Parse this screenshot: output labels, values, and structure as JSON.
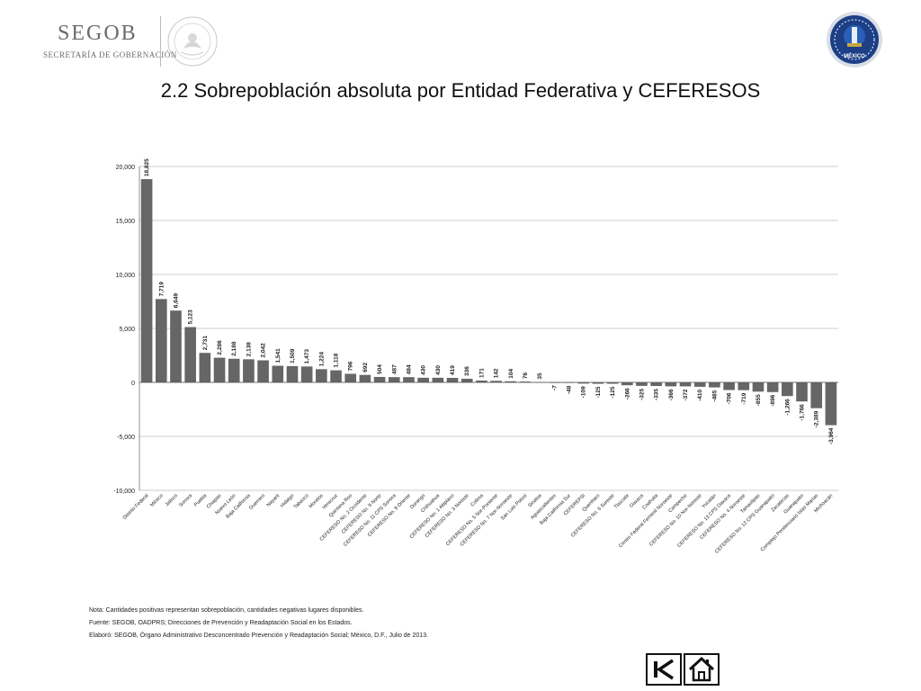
{
  "header": {
    "logo_text": "SEGOB",
    "logo_subtitle": "SECRETARÍA DE GOBERNACIÓN",
    "seal_text": "ESTADOS UNIDOS MEXICANOS",
    "right_logo_text": "MÉXICO"
  },
  "title": "2.2 Sobrepoblación absoluta por Entidad Federativa y CEFERESOS",
  "chart_data": {
    "type": "bar",
    "ylim": [
      -10000,
      20000
    ],
    "yticks": [
      -10000,
      -5000,
      0,
      5000,
      10000,
      15000,
      20000
    ],
    "ytick_labels": [
      "-10,000",
      "-5,000",
      "0",
      "5,000",
      "10,000",
      "15,000",
      "20,000"
    ],
    "grid": true,
    "bar_color": "#666666",
    "categories": [
      "Distrito Federal",
      "México",
      "Jalisco",
      "Sonora",
      "Puebla",
      "Chiapas",
      "Nuevo León",
      "Baja California",
      "Guerrero",
      "Nayarit",
      "Hidalgo",
      "Tabasco",
      "Morelos",
      "Veracruz",
      "Quintana Roo",
      "CEFERESO No. 2 Occidente",
      "CEFERESO No. 9 Norte",
      "CEFERESO No. 11 CPS Sonora",
      "CEFERESO No. 8 Oriente",
      "Durango",
      "Chihuahua",
      "CEFERESO No. 1 Altiplano",
      "CEFERESO No. 3 Noreste",
      "Colima",
      "CEFERESO No. 5 Nor-Poniente",
      "CEFERESO No. 7 Nor-Noroeste",
      "San Luis Potosí",
      "Sinaloa",
      "Aguascalientes",
      "Baja California Sur",
      "CEFEREPSI",
      "Querétaro",
      "CEFERESO No. 6 Sureste",
      "Tlaxcala",
      "Oaxaca",
      "Coahuila",
      "Centro Federal Femenil Noroeste",
      "Campeche",
      "CEFERESO No. 10 Nor-Noreste",
      "Yucatán",
      "CEFERESO No. 13 CPS Oaxaca",
      "CEFERESO No. 4 Noroeste",
      "Tamaulipas",
      "CEFERESO No. 12 CPS Guanajuato",
      "Zacatecas",
      "Guanajuato",
      "Complejo Penitenciario Islas Marías",
      "Michoacán"
    ],
    "values": [
      18825,
      7719,
      6649,
      5123,
      2731,
      2286,
      2188,
      2138,
      2042,
      1541,
      1509,
      1473,
      1224,
      1118,
      796,
      692,
      504,
      487,
      484,
      430,
      430,
      419,
      336,
      171,
      142,
      104,
      76,
      35,
      -7,
      -48,
      -109,
      -125,
      -125,
      -266,
      -325,
      -335,
      -366,
      -372,
      -410,
      -465,
      -706,
      -719,
      -855,
      -896,
      -1266,
      -1766,
      -2389,
      -3964
    ],
    "value_labels": [
      "18,825",
      "7,719",
      "6,649",
      "5,123",
      "2,731",
      "2,286",
      "2,188",
      "2,138",
      "2,042",
      "1,541",
      "1,509",
      "1,473",
      "1,224",
      "1,118",
      "796",
      "692",
      "504",
      "487",
      "484",
      "430",
      "430",
      "419",
      "336",
      "171",
      "142",
      "104",
      "76",
      "35",
      "-7",
      "-48",
      "-109",
      "-125",
      "-125",
      "-266",
      "-325",
      "-335",
      "-366",
      "-372",
      "-410",
      "-465",
      "-706",
      "-719",
      "-855",
      "-896",
      "-1,266",
      "-1,766",
      "-2,389",
      "-3,964"
    ]
  },
  "notes": {
    "nota": "Nota: Cantidades positivas representan sobrepoblación, cantidades negativas lugares disponibles.",
    "fuente": "Fuente: SEGOB, OADPRS; Direcciones de Prevención y Readaptación Social en los Estados.",
    "elaboro": "Elaboró: SEGOB, Órgano Administrativo Desconcentrado Prevención y Readaptación Social; México, D.F., Julio de 2013."
  },
  "nav": {
    "back_icon": "skip-back-icon",
    "home_icon": "home-icon"
  }
}
